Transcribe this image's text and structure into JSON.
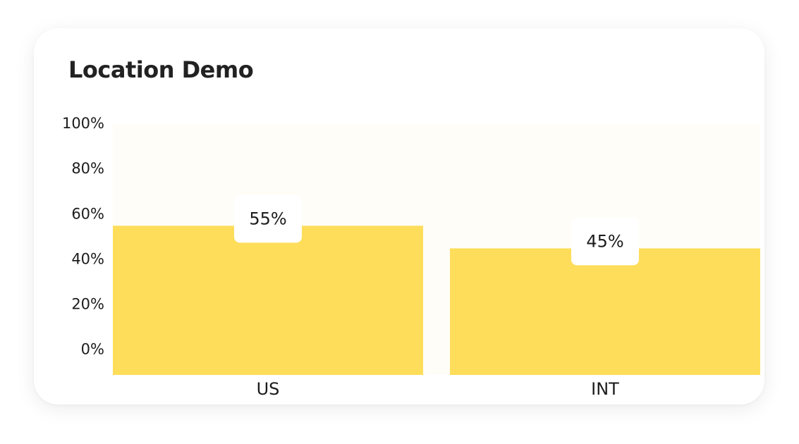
{
  "colors": {
    "plot_background": "#FFFDF8",
    "bar": "#FEDD5A",
    "label_box": "#FFFFFF"
  },
  "chart_data": {
    "type": "bar",
    "title": "Location Demo",
    "categories": [
      "US",
      "INT"
    ],
    "values": [
      55,
      45
    ],
    "data_labels": [
      "55%",
      "45%"
    ],
    "y_ticks": [
      "0%",
      "20%",
      "40%",
      "60%",
      "80%",
      "100%"
    ],
    "ylim": [
      -11,
      100
    ],
    "grid": false,
    "legend": "none"
  }
}
